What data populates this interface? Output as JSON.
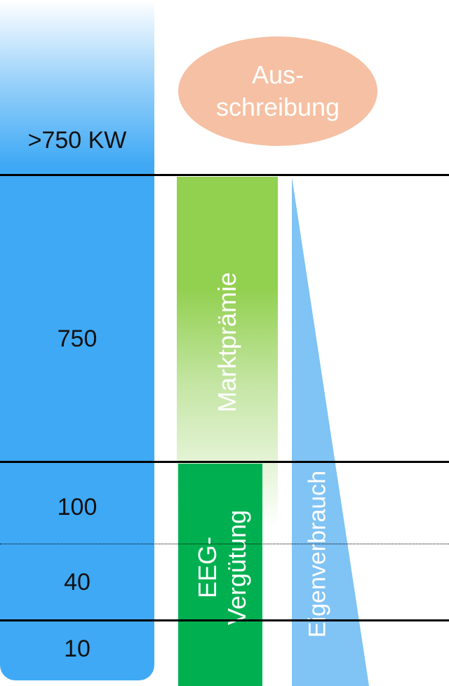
{
  "scale": {
    "labels": [
      ">750 KW",
      "750",
      "100",
      "40",
      "10"
    ]
  },
  "tender": {
    "label": "Aus-\nschreibung"
  },
  "market_premium": {
    "label": "Marktprämie"
  },
  "feed_in_tariff": {
    "line1": "EEG-",
    "line2": "Vergütung"
  },
  "self_consumption": {
    "label": "Eigenverbrauch"
  },
  "colors": {
    "scale_blue": "#3fa9f5",
    "tender_peach": "#f5c0a3",
    "market_green": "#92d050",
    "tariff_green": "#00b050",
    "self_consumption_blue": "#80c3f5"
  }
}
